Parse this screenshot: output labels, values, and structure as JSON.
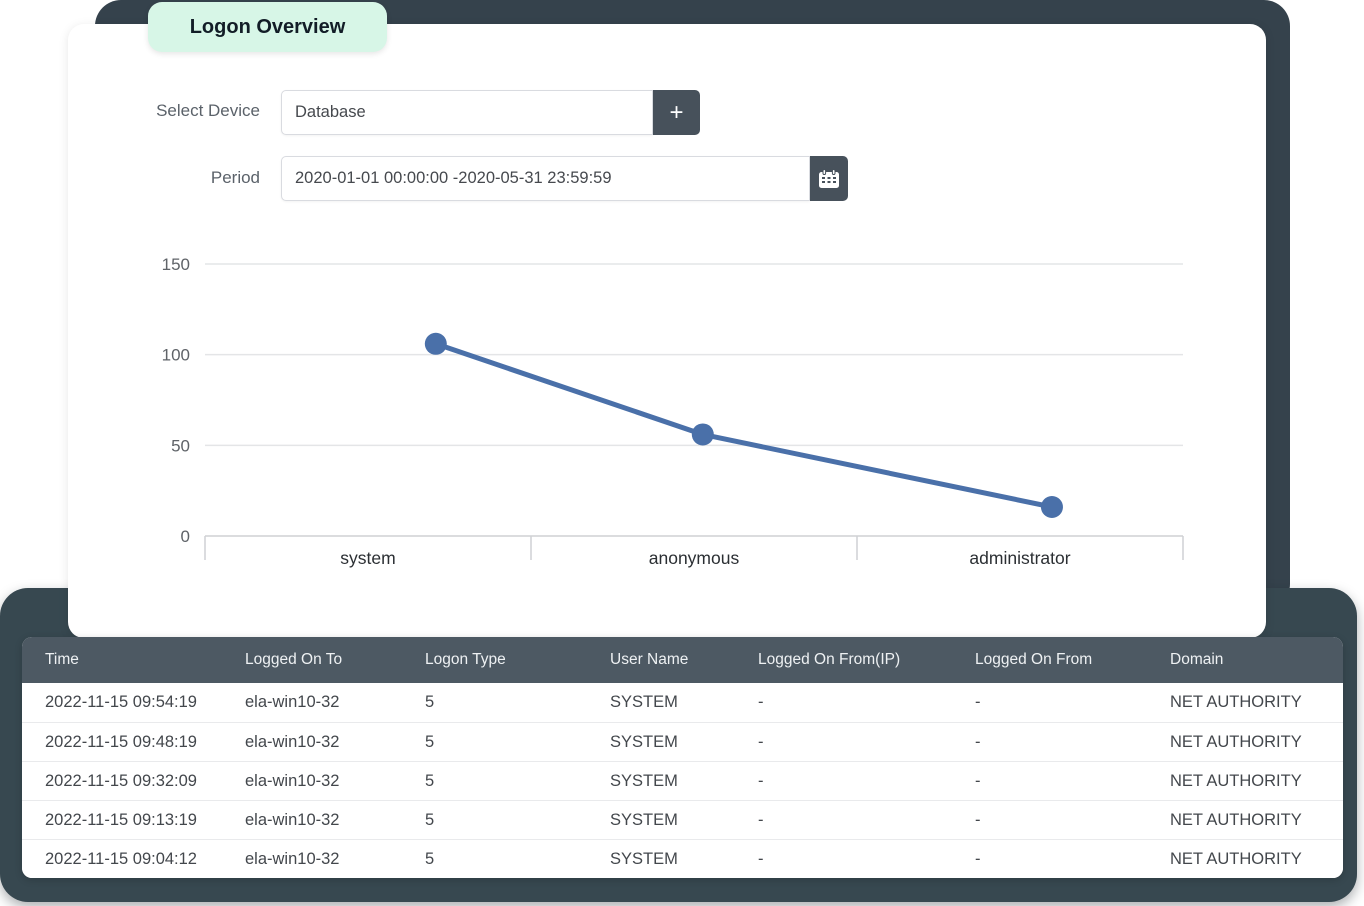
{
  "badge": {
    "label": "Logon Overview"
  },
  "filters": {
    "device_label": "Select Device",
    "device_value": "Database",
    "add_button_label": "+",
    "period_label": "Period",
    "period_value": "2020-01-01 00:00:00 -2020-05-31 23:59:59"
  },
  "chart_data": {
    "type": "line",
    "categories": [
      "system",
      "anonymous",
      "administrator"
    ],
    "values": [
      106,
      56,
      16
    ],
    "yticks": [
      0,
      50,
      100,
      150
    ],
    "ylim": [
      0,
      150
    ],
    "grid": true,
    "legend": "none",
    "line_color": "#4a70a9",
    "point_color": "#4a70a9"
  },
  "table": {
    "headers": [
      "Time",
      "Logged On To",
      "Logon Type",
      "User Name",
      "Logged On From(IP)",
      "Logged On From",
      "Domain"
    ],
    "rows": [
      [
        "2022-11-15 09:54:19",
        "ela-win10-32",
        "5",
        "SYSTEM",
        "-",
        "-",
        "NET AUTHORITY"
      ],
      [
        "2022-11-15 09:48:19",
        "ela-win10-32",
        "5",
        "SYSTEM",
        "-",
        "-",
        "NET AUTHORITY"
      ],
      [
        "2022-11-15 09:32:09",
        "ela-win10-32",
        "5",
        "SYSTEM",
        "-",
        "-",
        "NET AUTHORITY"
      ],
      [
        "2022-11-15 09:13:19",
        "ela-win10-32",
        "5",
        "SYSTEM",
        "-",
        "-",
        "NET AUTHORITY"
      ],
      [
        "2022-11-15 09:04:12",
        "ela-win10-32",
        "5",
        "SYSTEM",
        "-",
        "-",
        "NET AUTHORITY"
      ]
    ]
  },
  "colors": {
    "frame_dark": "#35424c",
    "panel_dark": "#374850",
    "badge_bg": "#d7f6e7",
    "button_bg": "#47515b",
    "table_header_bg": "#4d5963",
    "gridline": "#e4e5e7",
    "axis": "#cfd1d4",
    "tick_label": "#5f6368",
    "category_label": "#2b2f33"
  }
}
